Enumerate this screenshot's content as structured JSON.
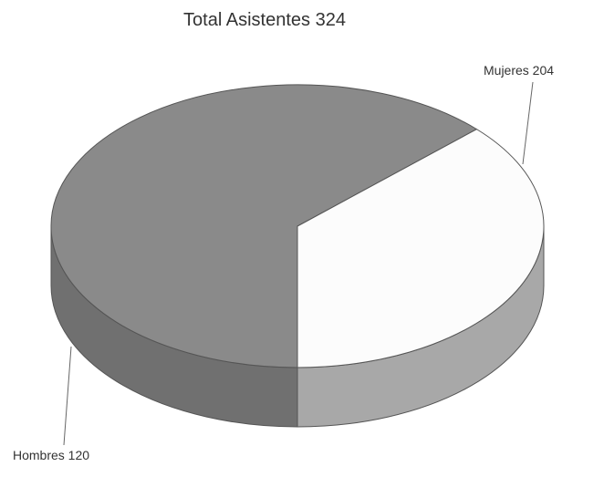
{
  "chart_data": {
    "type": "pie",
    "title": "Total Asistentes 324",
    "three_d": true,
    "slices": [
      {
        "label": "Mujeres 204",
        "category": "Mujeres",
        "value": 204,
        "top_color": "#8a8a8a",
        "side_color": "#707070"
      },
      {
        "label": "Hombres 120",
        "category": "Hombres",
        "value": 120,
        "top_color": "#fcfcfc",
        "side_color": "#a8a8a8"
      }
    ],
    "legend": "none"
  }
}
